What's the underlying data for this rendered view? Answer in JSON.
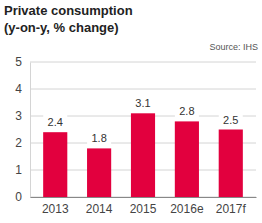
{
  "chart_data": {
    "type": "bar",
    "title": "Private consumption",
    "subtitle": "(y-on-y, % change)",
    "source": "Source: IHS",
    "categories": [
      "2013",
      "2014",
      "2015",
      "2016e",
      "2017f"
    ],
    "values": [
      2.4,
      1.8,
      3.1,
      2.8,
      2.5
    ],
    "color": "#e2003e",
    "ylim": [
      0,
      5
    ],
    "yticks": [
      0,
      1,
      2,
      3,
      4,
      5
    ],
    "grid": true,
    "data_labels": true
  }
}
